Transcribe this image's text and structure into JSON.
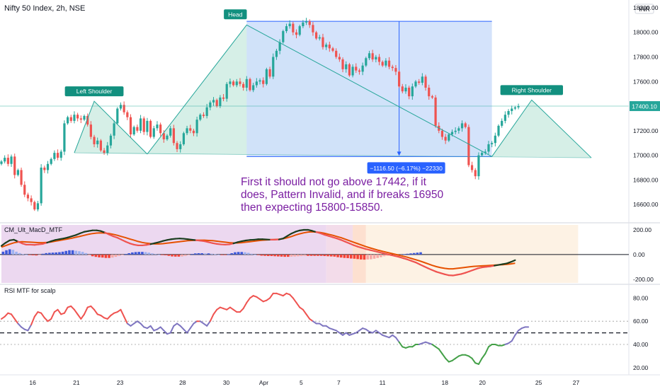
{
  "header": {
    "title": "Nifty 50 Index, 2h, NSE",
    "currency": "INR"
  },
  "colors": {
    "up": "#26a69a",
    "down": "#ef5350",
    "pattern_fill": "#cfece3",
    "pattern_stroke": "#26a69a",
    "measure_fill": "#cfe0fb",
    "measure_stroke": "#2962ff",
    "annotation_text": "#7b1fa2",
    "macd_fast": "#1b1b1b",
    "macd_slow": "#e65100",
    "hist_pos": "#3f5bdb",
    "hist_neg": "#f44336",
    "rsi_high": "#ef5350",
    "rsi_mid": "#7e75c0",
    "rsi_low": "#43a047"
  },
  "price_axis": {
    "ticks": [
      "18200.00",
      "18000.00",
      "17800.00",
      "17600.00",
      "17400.00",
      "17200.00",
      "17000.00",
      "16800.00",
      "16600.00"
    ],
    "current": "17400.10"
  },
  "macd_axis": {
    "ticks": [
      "200.00",
      "0.00",
      "-200.00"
    ]
  },
  "rsi_axis": {
    "ticks": [
      "80.00",
      "60.00",
      "40.00",
      "20.00"
    ]
  },
  "time_axis": {
    "labels": [
      "16",
      "21",
      "23",
      "28",
      "30",
      "Apr",
      "5",
      "7",
      "11",
      "18",
      "20",
      "25",
      "27"
    ]
  },
  "labels": {
    "head": "Head",
    "left_shoulder": "Left Shoulder",
    "right_shoulder": "Right Shoulder",
    "measure": "−1116.50 (−6.17%) −22330"
  },
  "annotation": {
    "lines": [
      "First it should not go above 17442, if it",
      "does, Pattern Invalid, and if breaks 16950",
      "then expecting 15800-15850."
    ]
  },
  "panes": {
    "macd_title": "CM_Ult_MacD_MTF",
    "rsi_title": "RSI MTF for scalp"
  },
  "chart_data": {
    "type": "candlestick",
    "symbol": "Nifty 50 Index",
    "interval": "2h",
    "price_range": [
      16480,
      18240
    ],
    "close": [
      16950,
      16980,
      16930,
      16990,
      16840,
      16880,
      16760,
      16680,
      16650,
      16620,
      16560,
      16610,
      16900,
      16880,
      16930,
      16970,
      17020,
      16980,
      17030,
      17260,
      17310,
      17280,
      17330,
      17300,
      17290,
      17320,
      17250,
      17150,
      17090,
      17120,
      17040,
      17020,
      17080,
      17160,
      17260,
      17380,
      17410,
      17350,
      17310,
      17170,
      17230,
      17200,
      17300,
      17190,
      17280,
      17150,
      17220,
      17250,
      17180,
      17130,
      17160,
      17220,
      17100,
      17050,
      17090,
      17180,
      17220,
      17200,
      17180,
      17290,
      17330,
      17320,
      17390,
      17430,
      17450,
      17400,
      17470,
      17460,
      17580,
      17600,
      17570,
      17600,
      17580,
      17550,
      17620,
      17530,
      17570,
      17600,
      17610,
      17580,
      17700,
      17640,
      17800,
      17850,
      17920,
      18010,
      18050,
      18070,
      18000,
      17980,
      18050,
      18080,
      18090,
      18060,
      18000,
      17950,
      17960,
      17880,
      17900,
      17870,
      17850,
      17800,
      17780,
      17700,
      17740,
      17650,
      17720,
      17690,
      17680,
      17730,
      17790,
      17830,
      17780,
      17800,
      17760,
      17730,
      17770,
      17720,
      17710,
      17680,
      17560,
      17520,
      17550,
      17480,
      17560,
      17600,
      17590,
      17640,
      17550,
      17480,
      17470,
      17240,
      17200,
      17150,
      17120,
      17170,
      17190,
      17200,
      17220,
      17260,
      17230,
      16920,
      16880,
      16830,
      17000,
      17020,
      17030,
      17090,
      17100,
      17160,
      17240,
      17280,
      17330,
      17360,
      17380,
      17390,
      17400
    ],
    "candle_colors_up": "#26a69a",
    "candle_colors_down": "#ef5350",
    "pattern": {
      "type": "head-and-shoulders",
      "points": [
        [
          22,
          17020
        ],
        [
          28,
          17440
        ],
        [
          44,
          17010
        ],
        [
          74,
          18060
        ],
        [
          116,
          17200
        ],
        [
          148,
          16990
        ],
        [
          160,
          17450
        ],
        [
          178,
          16980
        ]
      ],
      "neckline": [
        [
          22,
          17020
        ],
        [
          178,
          16980
        ]
      ],
      "right_shoulder_at": 160
    },
    "measure": {
      "from_index": 74,
      "to_index": 148,
      "top": 18090,
      "bottom": 16990,
      "arrow_index": 120,
      "change": "−1116.50 (−6.17%) −22330"
    },
    "horizontal_line": 17400.1,
    "macd": {
      "range": [
        -230,
        240
      ],
      "fast": [
        70,
        95,
        115,
        120,
        105,
        90,
        80,
        80,
        78,
        82,
        86,
        96,
        108,
        118,
        124,
        130,
        138,
        148,
        158,
        172,
        184,
        190,
        196,
        196,
        190,
        178,
        162,
        148,
        136,
        120,
        104,
        90,
        80,
        74,
        74,
        78,
        84,
        92,
        100,
        110,
        118,
        124,
        128,
        130,
        128,
        124,
        120,
        116,
        112,
        108,
        100,
        92,
        86,
        82,
        80,
        82,
        90,
        100,
        108,
        114,
        118,
        120,
        124,
        124,
        122,
        120,
        120,
        122,
        130,
        150,
        170,
        185,
        195,
        200,
        200,
        192,
        182,
        172,
        160,
        150,
        140,
        130,
        118,
        104,
        90,
        76,
        64,
        54,
        44,
        36,
        28,
        20,
        12,
        4,
        -4,
        -12,
        -20,
        -30,
        -40,
        -52,
        -64,
        -80,
        -96,
        -112,
        -126,
        -140,
        -150,
        -160,
        -168,
        -170,
        -164,
        -158,
        -148,
        -136,
        -124,
        -112,
        -104,
        -100,
        -96,
        -90,
        -84,
        -78,
        -72,
        -60,
        -46
      ],
      "slow": [
        60,
        72,
        84,
        95,
        102,
        104,
        102,
        100,
        98,
        96,
        96,
        98,
        102,
        108,
        114,
        120,
        126,
        132,
        140,
        148,
        156,
        164,
        170,
        174,
        176,
        174,
        170,
        164,
        156,
        146,
        136,
        126,
        116,
        106,
        98,
        92,
        88,
        86,
        86,
        88,
        92,
        96,
        100,
        104,
        108,
        112,
        114,
        116,
        116,
        116,
        114,
        112,
        108,
        104,
        100,
        96,
        94,
        94,
        96,
        100,
        104,
        108,
        112,
        116,
        118,
        120,
        122,
        124,
        128,
        136,
        146,
        158,
        168,
        176,
        182,
        184,
        182,
        178,
        172,
        164,
        156,
        146,
        136,
        124,
        112,
        100,
        88,
        76,
        64,
        54,
        44,
        34,
        26,
        18,
        10,
        2,
        -6,
        -14,
        -22,
        -32,
        -42,
        -52,
        -64,
        -76,
        -88,
        -98,
        -106,
        -112,
        -116,
        -116,
        -112,
        -108,
        -104,
        -100,
        -96,
        -94,
        -92,
        -90,
        -88,
        -86,
        -84,
        -82,
        -80,
        -76,
        -70
      ],
      "histogram": [
        30,
        45,
        55,
        50,
        30,
        15,
        5,
        0,
        -5,
        -8,
        -10,
        -2,
        8,
        15,
        18,
        20,
        22,
        25,
        30,
        38,
        45,
        45,
        40,
        35,
        28,
        15,
        -8,
        -18,
        -25,
        -30,
        -32,
        -36,
        -36,
        -32,
        -24,
        -14,
        -4,
        6,
        14,
        22,
        26,
        28,
        28,
        26,
        20,
        12,
        6,
        0,
        -4,
        -8,
        -14,
        -20,
        -22,
        -22,
        -20,
        -14,
        -4,
        6,
        12,
        14,
        14,
        12,
        12,
        8,
        4,
        0,
        -2,
        -2,
        2,
        14,
        24,
        27,
        27,
        24,
        18,
        8,
        0,
        -6,
        -12,
        -14,
        -16,
        -16,
        -18,
        -20,
        -22,
        -24,
        -24,
        -22,
        -20,
        -18,
        -16,
        -14,
        -14,
        -14,
        -14,
        -14,
        -14,
        -16,
        -18,
        -20,
        -22,
        -28,
        -32,
        -36,
        -38,
        -42,
        -44,
        -48,
        -52,
        -54,
        -52,
        -50,
        -44,
        -36,
        -28,
        -18,
        -12,
        -10,
        -8,
        -4,
        0,
        4,
        8,
        12,
        16,
        20,
        24
      ],
      "bg_bands": [
        [
          0,
          98,
          "#ecd8f0"
        ],
        [
          98,
          106,
          "#f3dcea"
        ],
        [
          106,
          110,
          "#fde0d0"
        ],
        [
          110,
          174,
          "#fdf2e4"
        ]
      ]
    },
    "rsi": {
      "range": [
        15,
        90
      ],
      "levels": [
        60,
        50,
        40
      ],
      "values": [
        62,
        64,
        67,
        66,
        62,
        58,
        55,
        53,
        52,
        57,
        64,
        68,
        67,
        63,
        60,
        62,
        68,
        70,
        66,
        67,
        72,
        73,
        70,
        66,
        62,
        66,
        72,
        73,
        70,
        66,
        65,
        63,
        62,
        65,
        67,
        68,
        70,
        64,
        58,
        56,
        58,
        60,
        58,
        55,
        54,
        56,
        52,
        53,
        55,
        52,
        49,
        50,
        56,
        58,
        56,
        53,
        50,
        54,
        58,
        60,
        60,
        58,
        56,
        60,
        66,
        70,
        72,
        71,
        70,
        72,
        70,
        68,
        68,
        71,
        76,
        80,
        82,
        81,
        79,
        77,
        78,
        80,
        84,
        84,
        83,
        82,
        84,
        83,
        80,
        76,
        72,
        70,
        66,
        62,
        60,
        58,
        58,
        56,
        56,
        54,
        53,
        52,
        50,
        48,
        50,
        48,
        49,
        50,
        52,
        54,
        53,
        51,
        50,
        52,
        50,
        48,
        47,
        46,
        48,
        46,
        42,
        38,
        37,
        38,
        38,
        40,
        40,
        41,
        42,
        41,
        40,
        38,
        36,
        32,
        28,
        25,
        26,
        28,
        30,
        31,
        31,
        30,
        28,
        24,
        23,
        28,
        32,
        38,
        40,
        40,
        39,
        39,
        40,
        41,
        43,
        48,
        52,
        54,
        55,
        55
      ]
    },
    "x_ticks": [
      [
        "16",
        10
      ],
      [
        "21",
        24
      ],
      [
        "23",
        38
      ],
      [
        "28",
        58
      ],
      [
        "30",
        72
      ],
      [
        "Apr",
        84
      ],
      [
        "5",
        96
      ],
      [
        "7",
        108
      ],
      [
        "11",
        122
      ],
      [
        "18",
        142
      ],
      [
        "20",
        154
      ],
      [
        "25",
        172
      ],
      [
        "27",
        184
      ]
    ]
  }
}
